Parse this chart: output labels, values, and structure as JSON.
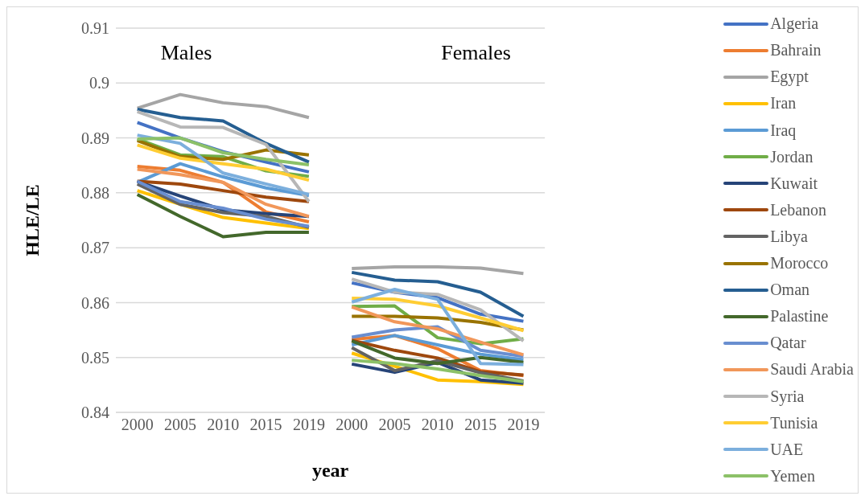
{
  "chart_data": {
    "type": "line",
    "xlabel": "year",
    "ylabel": "HLE/LE",
    "categories": [
      "2000",
      "2005",
      "2010",
      "2015",
      "2019",
      "2000",
      "2005",
      "2010",
      "2015",
      "2019"
    ],
    "ylim": [
      0.84,
      0.91
    ],
    "yticks": [
      0.84,
      0.85,
      0.86,
      0.87,
      0.88,
      0.89,
      0.9,
      0.91
    ],
    "grid": "y",
    "legend": "right",
    "marker": "none",
    "line_style": "solid",
    "annotations": [
      "Males",
      "Females"
    ],
    "series": [
      {
        "name": "Algeria",
        "color": "#4472c4",
        "values": [
          0.8928,
          0.89,
          0.8875,
          0.8856,
          0.8838,
          0.8636,
          0.8619,
          0.8609,
          0.8579,
          0.8566
        ]
      },
      {
        "name": "Bahrain",
        "color": "#ed7d31",
        "values": [
          0.8848,
          0.8841,
          0.8819,
          0.8765,
          0.8747,
          0.8533,
          0.854,
          0.8516,
          0.8476,
          0.8467
        ]
      },
      {
        "name": "Egypt",
        "color": "#a5a5a5",
        "values": [
          0.8954,
          0.8979,
          0.8964,
          0.8957,
          0.8937,
          0.8662,
          0.8665,
          0.8665,
          0.8663,
          0.8653
        ]
      },
      {
        "name": "Iran",
        "color": "#ffc000",
        "values": [
          0.8804,
          0.8779,
          0.8755,
          0.8745,
          0.8735,
          0.8508,
          0.8484,
          0.8459,
          0.8456,
          0.8451
        ]
      },
      {
        "name": "Iraq",
        "color": "#5b9bd5",
        "values": [
          0.8819,
          0.8853,
          0.8829,
          0.8809,
          0.8795,
          0.8523,
          0.854,
          0.8523,
          0.8506,
          0.8496
        ]
      },
      {
        "name": "Jordan",
        "color": "#70ad47",
        "values": [
          0.8898,
          0.8869,
          0.8866,
          0.884,
          0.883,
          0.8593,
          0.8594,
          0.8536,
          0.8525,
          0.8534
        ]
      },
      {
        "name": "Kuwait",
        "color": "#264478",
        "values": [
          0.8821,
          0.8794,
          0.8769,
          0.8762,
          0.8757,
          0.8488,
          0.8473,
          0.8491,
          0.8459,
          0.8453
        ]
      },
      {
        "name": "Lebanon",
        "color": "#9e480e",
        "values": [
          0.8821,
          0.8816,
          0.8804,
          0.8792,
          0.8784,
          0.8531,
          0.8513,
          0.8499,
          0.8474,
          0.8468
        ]
      },
      {
        "name": "Libya",
        "color": "#636363",
        "values": [
          0.8816,
          0.8779,
          0.8764,
          0.8757,
          0.8737,
          0.8518,
          0.8476,
          0.8494,
          0.8472,
          0.8457
        ]
      },
      {
        "name": "Morocco",
        "color": "#997300",
        "values": [
          0.8895,
          0.8866,
          0.8861,
          0.8878,
          0.8869,
          0.8575,
          0.8575,
          0.8572,
          0.8564,
          0.855
        ]
      },
      {
        "name": "Oman",
        "color": "#255e91",
        "values": [
          0.8952,
          0.8937,
          0.8931,
          0.889,
          0.8856,
          0.8655,
          0.8641,
          0.8638,
          0.8619,
          0.8575
        ]
      },
      {
        "name": "Palastine",
        "color": "#43682b",
        "values": [
          0.8797,
          0.8757,
          0.872,
          0.8728,
          0.8728,
          0.853,
          0.8499,
          0.8489,
          0.85,
          0.8491
        ]
      },
      {
        "name": "Qatar",
        "color": "#698ed0",
        "values": [
          0.8821,
          0.8784,
          0.8772,
          0.8752,
          0.8739,
          0.8537,
          0.855,
          0.8556,
          0.8513,
          0.8502
        ]
      },
      {
        "name": "Saudi Arabia",
        "color": "#f1975a",
        "values": [
          0.8843,
          0.8833,
          0.8819,
          0.8779,
          0.8757,
          0.8592,
          0.8565,
          0.8552,
          0.8528,
          0.8505
        ]
      },
      {
        "name": "Syria",
        "color": "#b7b7b7",
        "values": [
          0.8948,
          0.892,
          0.8919,
          0.8888,
          0.8784,
          0.8643,
          0.8619,
          0.8615,
          0.8587,
          0.853
        ]
      },
      {
        "name": "Tunisia",
        "color": "#ffcd33",
        "values": [
          0.8887,
          0.8863,
          0.8853,
          0.8843,
          0.8823,
          0.8608,
          0.8606,
          0.8594,
          0.8572,
          0.8549
        ]
      },
      {
        "name": "UAE",
        "color": "#7cafdd",
        "values": [
          0.8905,
          0.889,
          0.8836,
          0.8816,
          0.8797,
          0.8601,
          0.8624,
          0.8606,
          0.8489,
          0.8487
        ]
      },
      {
        "name": "Yemen",
        "color": "#8cc168",
        "values": [
          0.8898,
          0.89,
          0.8873,
          0.8861,
          0.8851,
          0.8495,
          0.8489,
          0.8479,
          0.8467,
          0.8456
        ]
      }
    ]
  }
}
